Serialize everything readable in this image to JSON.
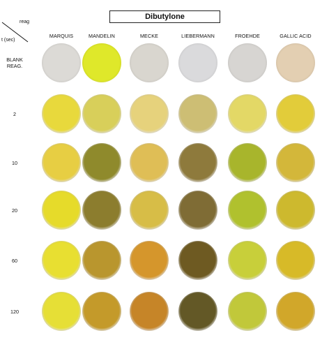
{
  "title": "Dibutylone",
  "corner": {
    "top_label": "reag",
    "bottom_label": "t (sec)"
  },
  "reagents": [
    "MARQUIS",
    "MANDELIN",
    "MECKE",
    "LIEBERMANN",
    "FROEHDE",
    "GALLIC ACID"
  ],
  "rows": [
    {
      "label": "BLANK REAG.",
      "colors": [
        "#dcdad6",
        "#dfe82a",
        "#d9d6cf",
        "#dadadc",
        "#d7d5d2",
        "#e3cfb2"
      ]
    },
    {
      "label": "2",
      "colors": [
        "#e8d93c",
        "#d8cf5a",
        "#e6d27c",
        "#cdbe74",
        "#e3d866",
        "#e2cc3a"
      ]
    },
    {
      "label": "10",
      "colors": [
        "#e7ce43",
        "#8f8a2c",
        "#dfbe56",
        "#8e7a3c",
        "#a8b52c",
        "#d3b73a"
      ]
    },
    {
      "label": "20",
      "colors": [
        "#e6db2a",
        "#8c7d2e",
        "#d7bd47",
        "#7f6c35",
        "#b0c12e",
        "#cdb92e"
      ]
    },
    {
      "label": "60",
      "colors": [
        "#e8df31",
        "#b9962e",
        "#d5962c",
        "#6e5a22",
        "#c8cf3a",
        "#d7ba28"
      ]
    },
    {
      "label": "120",
      "colors": [
        "#e6df36",
        "#c49a2a",
        "#c68528",
        "#635826",
        "#c1c83a",
        "#d1a72a"
      ]
    }
  ]
}
